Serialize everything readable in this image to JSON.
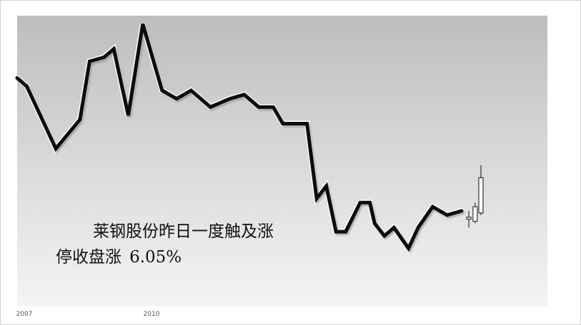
{
  "headline": {
    "line1": "莱钢股份昨日一度触及涨",
    "line2_prefix": "停收盘涨",
    "line2_value": "6.05%"
  },
  "chart_data": {
    "type": "line",
    "title": "",
    "xlabel": "",
    "ylabel": "",
    "x_ticks": [
      "2007",
      "2010",
      "",
      "",
      "",
      ""
    ],
    "y_ticks": [
      "",
      "",
      "",
      "",
      "",
      ""
    ],
    "grid": false,
    "y_range": [
      5.0,
      12.0
    ],
    "x_range": [
      0,
      100
    ],
    "series": [
      {
        "x": [
          0,
          2,
          8,
          13,
          15,
          18,
          20,
          23,
          26,
          30,
          33,
          36,
          40,
          44,
          47,
          50,
          53,
          55,
          58,
          60,
          62,
          64,
          66,
          68,
          71,
          73,
          74,
          76,
          78,
          81,
          83,
          86,
          89,
          92
        ],
        "y": [
          10.5,
          10.3,
          8.8,
          9.5,
          10.9,
          11.0,
          11.2,
          9.6,
          11.8,
          10.2,
          10.0,
          10.2,
          9.8,
          10.0,
          10.1,
          9.8,
          9.8,
          9.4,
          9.4,
          9.4,
          7.6,
          7.9,
          6.8,
          6.8,
          7.5,
          7.5,
          7.0,
          6.7,
          6.9,
          6.4,
          6.9,
          7.4,
          7.2,
          7.3
        ]
      }
    ],
    "candles": [
      {
        "x": 93.5,
        "open": 7.15,
        "high": 7.3,
        "low": 6.9,
        "close": 7.1
      },
      {
        "x": 94.8,
        "open": 7.05,
        "high": 7.5,
        "low": 7.0,
        "close": 7.4
      },
      {
        "x": 96.0,
        "open": 7.25,
        "high": 8.4,
        "low": 7.2,
        "close": 8.1
      }
    ]
  }
}
